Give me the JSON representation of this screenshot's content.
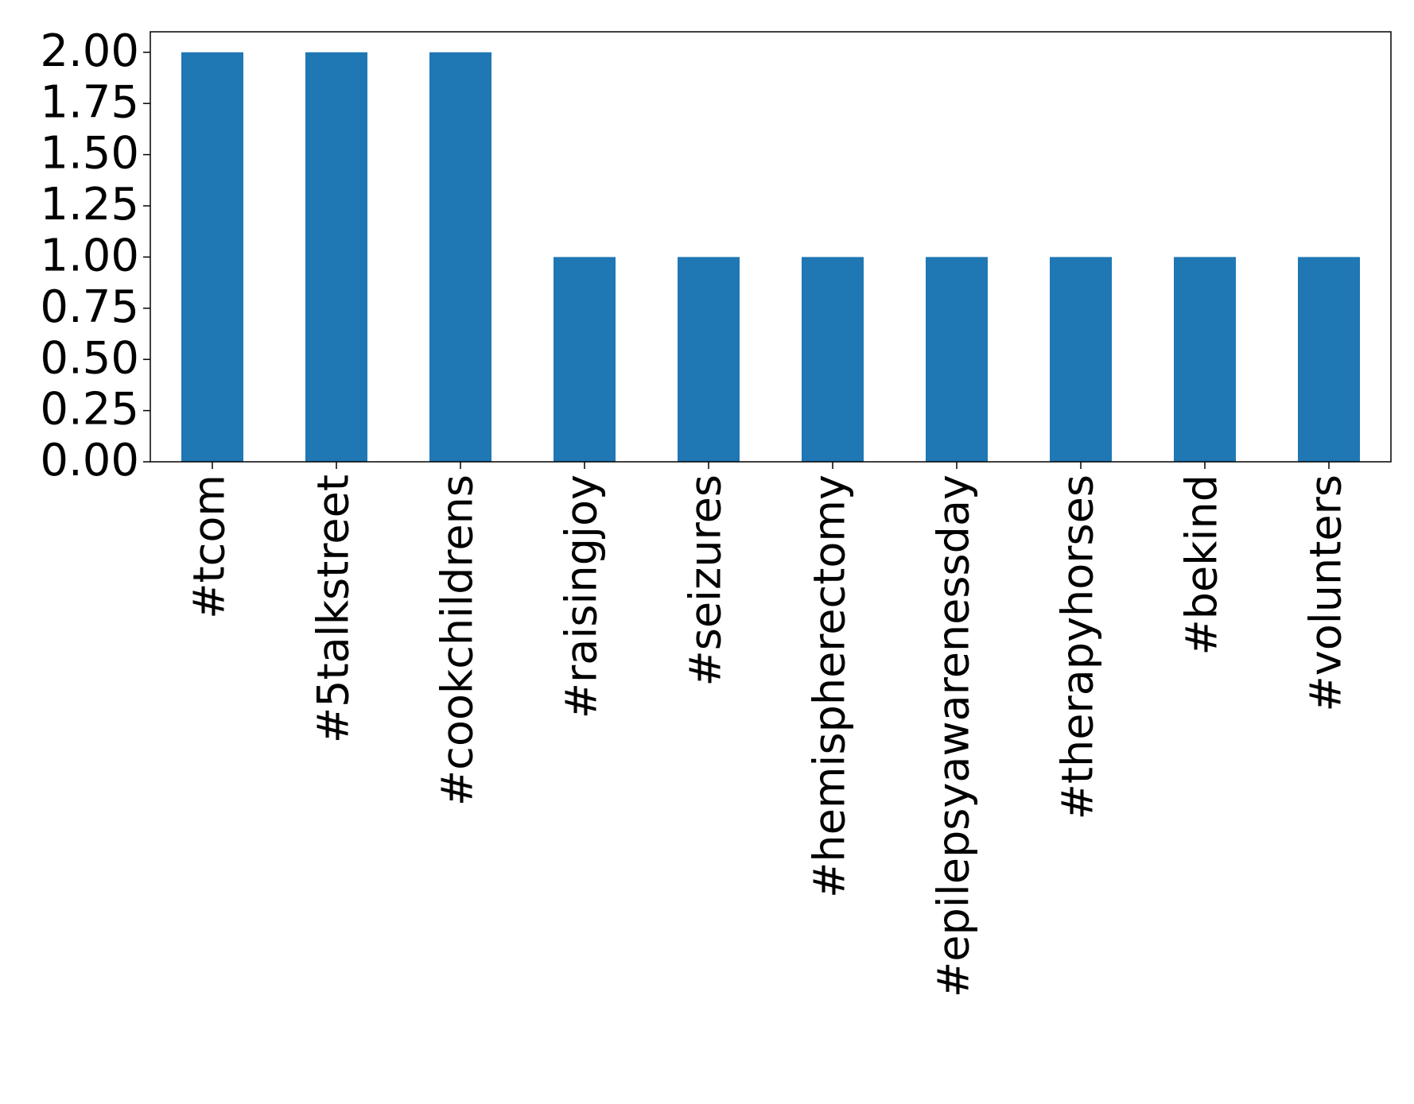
{
  "chart_data": {
    "type": "bar",
    "categories": [
      "#tcom",
      "#5talkstreet",
      "#cookchildrens",
      "#raisingjoy",
      "#seizures",
      "#hemispherectomy",
      "#epilepsyawarenessday",
      "#therapyhorses",
      "#bekind",
      "#volunters"
    ],
    "values": [
      2,
      2,
      2,
      1,
      1,
      1,
      1,
      1,
      1,
      1
    ],
    "color": "#1f77b4",
    "ylim": [
      0,
      2.1
    ],
    "yticks": [
      {
        "value": 0,
        "label": "0.00"
      },
      {
        "value": 0.25,
        "label": "0.25"
      },
      {
        "value": 0.5,
        "label": "0.50"
      },
      {
        "value": 0.75,
        "label": "0.75"
      },
      {
        "value": 1,
        "label": "1.00"
      },
      {
        "value": 1.25,
        "label": "1.25"
      },
      {
        "value": 1.5,
        "label": "1.50"
      },
      {
        "value": 1.75,
        "label": "1.75"
      },
      {
        "value": 2,
        "label": "2.00"
      }
    ],
    "grid": false
  }
}
